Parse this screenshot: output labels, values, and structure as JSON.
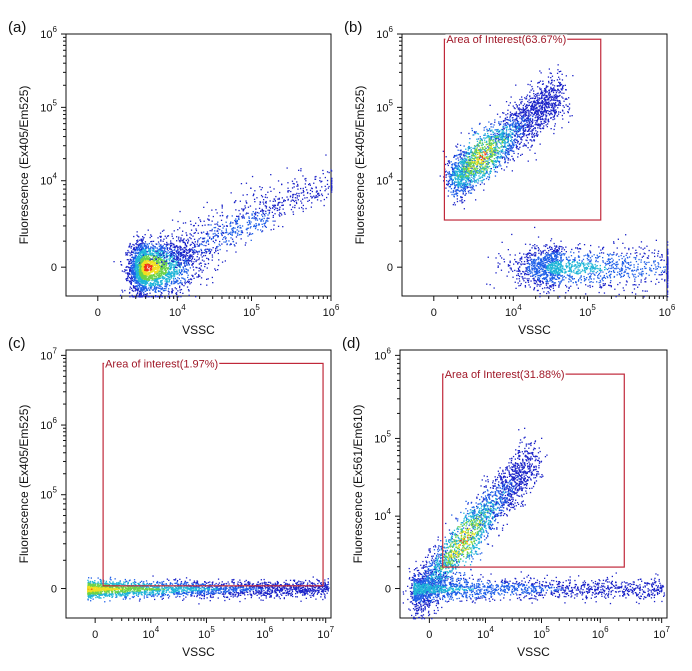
{
  "chart_data": [
    {
      "type": "scatter",
      "panel_label": "(a)",
      "xlabel": "VSSC",
      "ylabel": "Fluorescence (Ex405/Em525)",
      "x_ticks": [
        {
          "base": "0",
          "exp": ""
        },
        {
          "base": "10",
          "exp": "4"
        },
        {
          "base": "10",
          "exp": "5"
        },
        {
          "base": "10",
          "exp": "6"
        }
      ],
      "y_ticks": [
        {
          "base": "0",
          "exp": ""
        },
        {
          "base": "10",
          "exp": "4"
        },
        {
          "base": "10",
          "exp": "5"
        },
        {
          "base": "10",
          "exp": "6"
        }
      ],
      "gate": null,
      "clusters": [
        {
          "name": "main population",
          "x_center": 0.3,
          "y_center": 0.0,
          "x_spread": 0.12,
          "y_spread": 0.05,
          "density": "high"
        },
        {
          "name": "diagonal tail",
          "x_from": 0.4,
          "x_to": 0.98,
          "y_from": 0.02,
          "y_to": 0.3,
          "density": "low"
        }
      ]
    },
    {
      "type": "scatter",
      "panel_label": "(b)",
      "xlabel": "VSSC",
      "ylabel": "Fluorescence (Ex405/Em525)",
      "x_ticks": [
        {
          "base": "0",
          "exp": ""
        },
        {
          "base": "10",
          "exp": "4"
        },
        {
          "base": "10",
          "exp": "5"
        },
        {
          "base": "10",
          "exp": "6"
        }
      ],
      "y_ticks": [
        {
          "base": "0",
          "exp": ""
        },
        {
          "base": "10",
          "exp": "4"
        },
        {
          "base": "10",
          "exp": "5"
        },
        {
          "base": "10",
          "exp": "6"
        }
      ],
      "gate": {
        "label": "Area of Interest(63.67%)",
        "percent": 63.67
      },
      "clusters": [
        {
          "name": "gated population",
          "x_from": 0.2,
          "x_to": 0.6,
          "y_from": 0.45,
          "y_to": 0.78,
          "density": "high"
        },
        {
          "name": "baseline population",
          "x_center": 0.6,
          "y_center": 0.0,
          "x_spread": 0.35,
          "y_spread": 0.04,
          "density": "medium"
        }
      ]
    },
    {
      "type": "scatter",
      "panel_label": "(c)",
      "xlabel": "VSSC",
      "ylabel": "Fluorescence (Ex405/Em525)",
      "x_ticks": [
        {
          "base": "0",
          "exp": ""
        },
        {
          "base": "10",
          "exp": "4"
        },
        {
          "base": "10",
          "exp": "5"
        },
        {
          "base": "10",
          "exp": "6"
        },
        {
          "base": "10",
          "exp": "7"
        }
      ],
      "y_ticks": [
        {
          "base": "0",
          "exp": ""
        },
        {
          "base": "10",
          "exp": "5"
        },
        {
          "base": "10",
          "exp": "6"
        },
        {
          "base": "10",
          "exp": "7"
        }
      ],
      "gate": {
        "label": "Area of interest(1.97%)",
        "percent": 1.97
      },
      "clusters": [
        {
          "name": "baseline band",
          "x_from": 0.08,
          "x_to": 0.99,
          "y_center": 0.0,
          "y_spread": 0.015,
          "density": "high"
        }
      ]
    },
    {
      "type": "scatter",
      "panel_label": "(d)",
      "xlabel": "VSSC",
      "ylabel": "Fluorescence (Ex561/Em610)",
      "x_ticks": [
        {
          "base": "0",
          "exp": ""
        },
        {
          "base": "10",
          "exp": "4"
        },
        {
          "base": "10",
          "exp": "5"
        },
        {
          "base": "10",
          "exp": "6"
        },
        {
          "base": "10",
          "exp": "7"
        }
      ],
      "y_ticks": [
        {
          "base": "0",
          "exp": ""
        },
        {
          "base": "10",
          "exp": "4"
        },
        {
          "base": "10",
          "exp": "5"
        },
        {
          "base": "10",
          "exp": "6"
        }
      ],
      "gate": {
        "label": "Area of Interest(31.88%)",
        "percent": 31.88
      },
      "clusters": [
        {
          "name": "diagonal population",
          "x_from": 0.06,
          "x_to": 0.5,
          "y_from": 0.08,
          "y_to": 0.6,
          "density": "high"
        },
        {
          "name": "baseline population",
          "x_from": 0.05,
          "x_to": 0.99,
          "y_center": 0.0,
          "y_spread": 0.02,
          "density": "medium"
        }
      ]
    }
  ]
}
